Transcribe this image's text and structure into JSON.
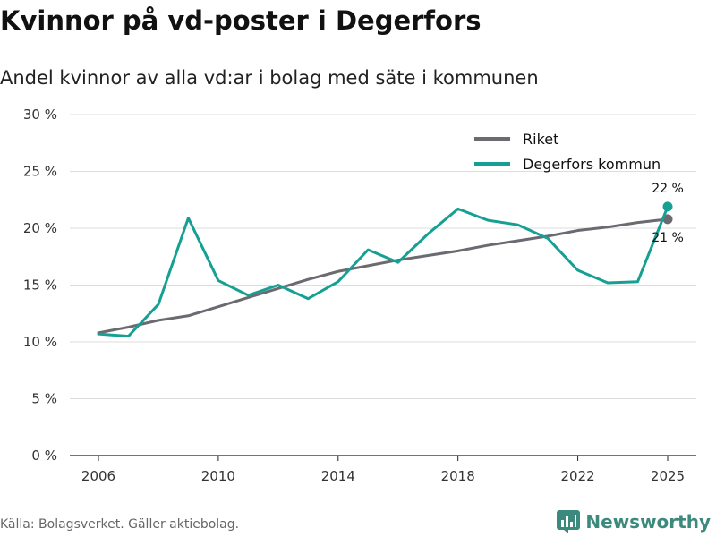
{
  "page": {
    "title": "Kvinnor på vd-poster i Degerfors",
    "subtitle": "Andel kvinnor av alla vd:ar i bolag med säte i kommunen",
    "source": "Källa: Bolagsverket. Gäller aktiebolag.",
    "brand": "Newsworthy"
  },
  "chart_data": {
    "type": "line",
    "title": "Kvinnor på vd-poster i Degerfors",
    "subtitle": "Andel kvinnor av alla vd:ar i bolag med säte i kommunen",
    "xlabel": "",
    "ylabel": "",
    "x": [
      2006,
      2007,
      2008,
      2009,
      2010,
      2011,
      2012,
      2013,
      2014,
      2015,
      2016,
      2017,
      2018,
      2019,
      2020,
      2021,
      2022,
      2023,
      2024,
      2025
    ],
    "xticks": [
      2006,
      2010,
      2014,
      2018,
      2022,
      2025
    ],
    "xlim": [
      2006,
      2025
    ],
    "ylim": [
      0,
      30
    ],
    "yticks": [
      0,
      5,
      10,
      15,
      20,
      25,
      30
    ],
    "ytick_labels": [
      "0 %",
      "5 %",
      "10 %",
      "15 %",
      "20 %",
      "25 %",
      "30 %"
    ],
    "grid": true,
    "legend_position": "top-right",
    "series": [
      {
        "name": "Riket",
        "color": "#6b6a70",
        "values": [
          10.8,
          11.3,
          11.9,
          12.3,
          13.1,
          13.9,
          14.7,
          15.5,
          16.2,
          16.7,
          17.2,
          17.6,
          18.0,
          18.5,
          18.9,
          19.3,
          19.8,
          20.1,
          20.5,
          20.8
        ],
        "end_label": "21 %"
      },
      {
        "name": "Degerfors kommun",
        "color": "#16a093",
        "values": [
          10.7,
          10.5,
          13.3,
          20.9,
          15.4,
          14.1,
          15.0,
          13.8,
          15.3,
          18.1,
          17.0,
          19.5,
          21.7,
          20.7,
          20.3,
          19.1,
          16.3,
          15.2,
          15.3,
          21.9
        ],
        "end_label": "22 %"
      }
    ]
  }
}
